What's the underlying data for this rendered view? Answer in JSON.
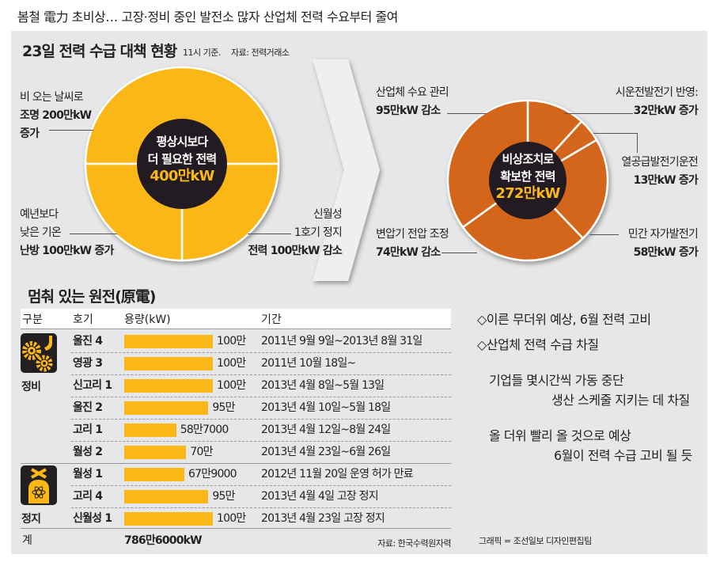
{
  "headline": "봄철 電力 초비상… 고장·정비 중인 발전소 많자 산업체 전력 수요부터 줄여",
  "section1": {
    "title": "23일 전력 수급 대책 현황",
    "time_note": "11시 기준.",
    "source": "자료: 전력거래소"
  },
  "colors": {
    "yellow": "#fbb715",
    "orange": "#d4661a",
    "dark": "#231f20",
    "panel": "#e6e7e8"
  },
  "chart_data": [
    {
      "type": "pie",
      "title": "평상시보다 더 필요한 전력",
      "total_label": "400만kW",
      "unit": "만kW",
      "center_lines": [
        "평상시보다",
        "더 필요한 전력"
      ],
      "slices": [
        {
          "label_lines": [
            "비 오는 날씨로",
            "조명 200만kW",
            "증가"
          ],
          "value": 200
        },
        {
          "label_lines": [
            "신월성",
            "1호기 정지",
            "전력 100만kW 감소"
          ],
          "value": 100
        },
        {
          "label_lines": [
            "예년보다",
            "낮은 기온",
            "난방 100만kW 증가"
          ],
          "value": 100
        }
      ]
    },
    {
      "type": "pie",
      "title": "비상조치로 확보한 전력",
      "total_label": "272만kW",
      "unit": "만kW",
      "center_lines": [
        "비상조치로",
        "확보한 전력"
      ],
      "slices": [
        {
          "label_lines": [
            "시운전발전기 반영:",
            "32만kW 증가"
          ],
          "value": 32
        },
        {
          "label_lines": [
            "열공급발전기운전",
            "13만kW 증가"
          ],
          "value": 13
        },
        {
          "label_lines": [
            "민간 자가발전기",
            "58만kW 증가"
          ],
          "value": 58
        },
        {
          "label_lines": [
            "변압기 전압 조정",
            "74만kW 감소"
          ],
          "value": 74
        },
        {
          "label_lines": [
            "산업체 수요 관리",
            "95만kW 감소"
          ],
          "value": 95
        }
      ]
    },
    {
      "type": "bar",
      "title": "멈춰 있는 원전(原電)",
      "headers": [
        "구분",
        "호기",
        "용량(kW)",
        "기간"
      ],
      "groups": [
        {
          "label": "정비",
          "icon": "gears-wrench-icon"
        },
        {
          "label": "정지",
          "icon": "stopped-reactor-icon"
        }
      ],
      "rows": [
        {
          "group": 0,
          "unit": "울진 4",
          "value": 1000000,
          "value_label": "100만",
          "period": "2011년 9월 9일~2013년 8월 31일"
        },
        {
          "group": 0,
          "unit": "영광 3",
          "value": 1000000,
          "value_label": "100만",
          "period": "2011년 10월 18일~"
        },
        {
          "group": 0,
          "unit": "신고리 1",
          "value": 1000000,
          "value_label": "100만",
          "period": "2013년 4월 8일~5월 13일"
        },
        {
          "group": 0,
          "unit": "울진 2",
          "value": 950000,
          "value_label": "95만",
          "period": "2013년 4월 10일~5월 18일"
        },
        {
          "group": 0,
          "unit": "고리 1",
          "value": 587000,
          "value_label": "58만7000",
          "period": "2013년 4월 12일~8월 24일"
        },
        {
          "group": 0,
          "unit": "월성 2",
          "value": 700000,
          "value_label": "70만",
          "period": "2013년 4월 23일~6월 26일"
        },
        {
          "group": 1,
          "unit": "월성 1",
          "value": 679000,
          "value_label": "67만9000",
          "period": "2012년 11월 20일 운영 허가 만료"
        },
        {
          "group": 1,
          "unit": "고리 4",
          "value": 950000,
          "value_label": "95만",
          "period": "2013년 4월 4일 고장 정지"
        },
        {
          "group": 1,
          "unit": "신월성 1",
          "value": 1000000,
          "value_label": "100만",
          "period": "2013년 4월 23일 고장 정지"
        }
      ],
      "total_label": "계",
      "total_value": "786만6000kW",
      "source": "자료: 한국수력원자력"
    }
  ],
  "notes": {
    "bullets": [
      "◇이른 무더위 예상, 6월 전력 고비",
      "◇산업체 전력 수급 차질"
    ],
    "para1": [
      "기업들 몇시간씩 가동 중단",
      "생산 스케줄 지키는 데 차질"
    ],
    "para2": [
      "올 더위 빨리 올 것으로 예상",
      "6월이 전력 수급 고비 될 듯"
    ],
    "credit": "그래픽 = 조선일보 디자인편집팀"
  }
}
